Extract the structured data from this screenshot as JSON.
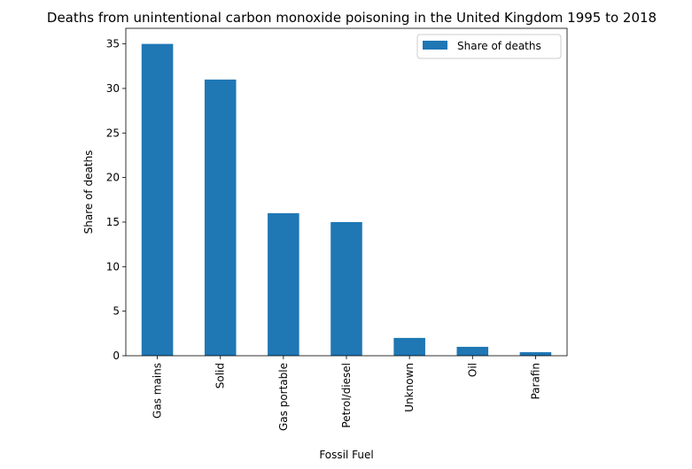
{
  "chart_data": {
    "type": "bar",
    "title": "Deaths from unintentional carbon monoxide poisoning in the United Kingdom 1995 to 2018",
    "xlabel": "Fossil Fuel",
    "ylabel": "Share of deaths",
    "categories": [
      "Gas mains",
      "Solid",
      "Gas portable",
      "Petrol/diesel",
      "Unknown",
      "Oil",
      "Parafin"
    ],
    "series": [
      {
        "name": "Share of deaths",
        "values": [
          35,
          31,
          16,
          15,
          2,
          1,
          0.4
        ],
        "color": "#1f77b4"
      }
    ],
    "ylim": [
      0,
      36.75
    ],
    "yticks": [
      "0",
      "5",
      "10",
      "15",
      "20",
      "25",
      "30",
      "35"
    ],
    "grid": false,
    "legend_position": "upper-right"
  }
}
